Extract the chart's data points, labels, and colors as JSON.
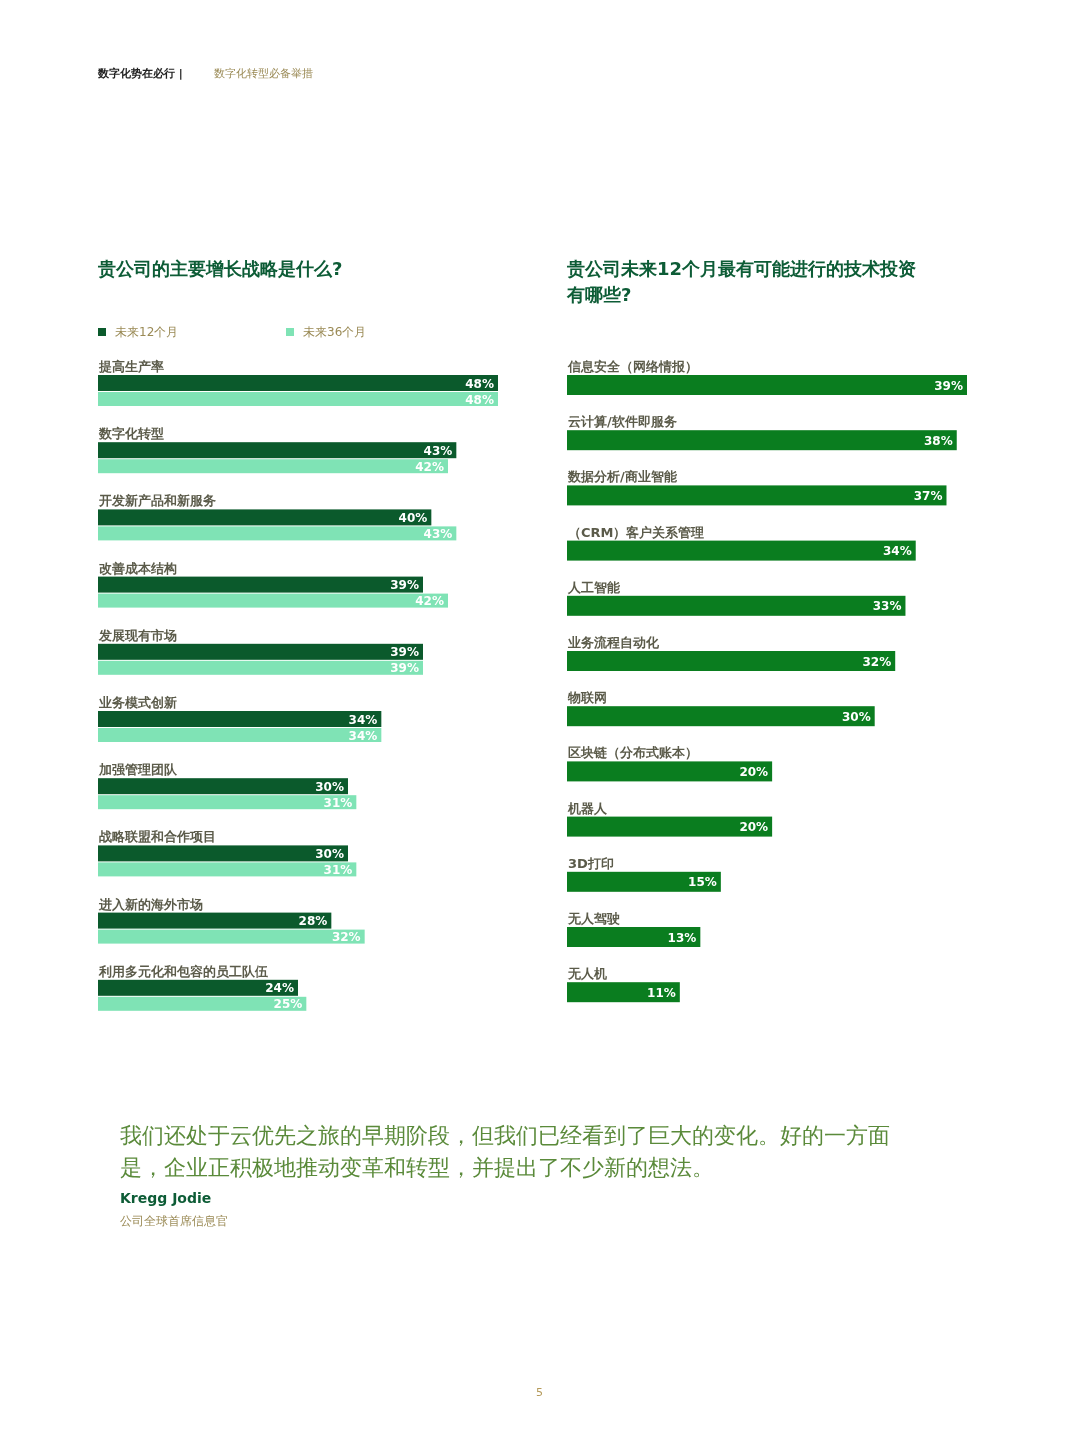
{
  "chart_data": [
    {
      "type": "bar",
      "orientation": "horizontal",
      "title": "贵公司的主要增长战略是什么?",
      "annotations": [
        "数字化势在必行 |",
        "数字化转型必备举措"
      ],
      "categories": [
        "提高生产率",
        "数字化转型",
        "开发新产品和新服务",
        "改善成本结构",
        "发展现有市场",
        "业务模式创新",
        "加强管理团队",
        "战略联盟和合作项目",
        "进入新的海外市场",
        "利用多元化和包容的员工队伍"
      ],
      "series": [
        {
          "name": "未来12个月",
          "color": "#0b5a2c",
          "values": [
            48,
            43,
            40,
            39,
            39,
            34,
            30,
            30,
            28,
            24
          ],
          "value_labels": [
            "48%",
            "43%",
            "40%",
            "39%",
            "39%",
            "34%",
            "30%",
            "30%",
            "28%",
            "24%"
          ]
        },
        {
          "name": "未来36个月",
          "color": "#7fe3b5",
          "values": [
            48,
            42,
            43,
            42,
            39,
            34,
            31,
            31,
            32,
            25
          ],
          "value_labels": [
            "48%",
            "42%",
            "43%",
            "42%",
            "39%",
            "34%",
            "31%",
            "31%",
            "32%",
            "25%"
          ]
        }
      ],
      "legend": "top"
    },
    {
      "type": "bar",
      "orientation": "horizontal",
      "title": "贵公司未来12个月最有可能进行的技术投资有哪些?",
      "categories": [
        "信息安全（网络情报）",
        "云计算/软件即服务",
        "数据分析/商业智能",
        "（CRM）客户关系管理",
        "人工智能",
        "业务流程自动化",
        "物联网",
        "区块链（分布式账本）",
        "机器人",
        "3D打印",
        "无人驾驶",
        "无人机"
      ],
      "series": [
        {
          "color": "#0a7d1f",
          "values": [
            39,
            38,
            37,
            34,
            33,
            32,
            30,
            20,
            20,
            15,
            13,
            11
          ],
          "value_labels": [
            "39%",
            "38%",
            "37%",
            "34%",
            "33%",
            "32%",
            "30%",
            "20%",
            "20%",
            "15%",
            "13%",
            "11%"
          ]
        }
      ]
    },
    {
      "type": "other",
      "annotations": [
        "我们还处于云优先之旅的早期阶段，但我们已经看到了巨大的变化。好的一方面是，企业正积极地推动变革和转型，并提出了不少新的想法。",
        "Kregg Jodie",
        "公司全球首席信息官",
        "5"
      ]
    }
  ]
}
